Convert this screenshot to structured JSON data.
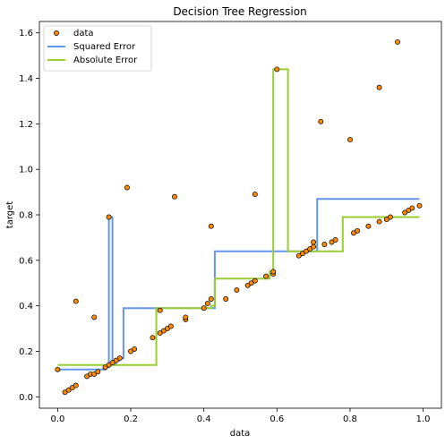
{
  "chart_data": {
    "type": "scatter",
    "title": "Decision Tree Regression",
    "xlabel": "data",
    "ylabel": "target",
    "xlim": [
      -0.05,
      1.05
    ],
    "ylim": [
      -0.05,
      1.65
    ],
    "xticks": [
      "0.0",
      "0.2",
      "0.4",
      "0.6",
      "0.8",
      "1.0"
    ],
    "yticks": [
      "0.0",
      "0.2",
      "0.4",
      "0.6",
      "0.8",
      "1.0",
      "1.2",
      "1.4",
      "1.6"
    ],
    "xtick_values": [
      0,
      0.2,
      0.4,
      0.6,
      0.8,
      1.0
    ],
    "ytick_values": [
      0,
      0.2,
      0.4,
      0.6,
      0.8,
      1.0,
      1.2,
      1.4,
      1.6
    ],
    "legend": {
      "placement": "upper-left",
      "entries": [
        "data",
        "Squared Error",
        "Absolute Error"
      ]
    },
    "colors": {
      "data_fill": "#ff8c00",
      "data_edge": "#000000",
      "squared": "#6495ed",
      "absolute": "#9acd32"
    },
    "series": [
      {
        "name": "data",
        "type": "scatter",
        "points": [
          [
            0.0,
            0.12
          ],
          [
            0.02,
            0.02
          ],
          [
            0.03,
            0.03
          ],
          [
            0.04,
            0.04
          ],
          [
            0.05,
            0.05
          ],
          [
            0.05,
            0.42
          ],
          [
            0.08,
            0.09
          ],
          [
            0.09,
            0.1
          ],
          [
            0.1,
            0.1
          ],
          [
            0.1,
            0.35
          ],
          [
            0.11,
            0.11
          ],
          [
            0.13,
            0.13
          ],
          [
            0.14,
            0.79
          ],
          [
            0.14,
            0.14
          ],
          [
            0.15,
            0.15
          ],
          [
            0.16,
            0.16
          ],
          [
            0.17,
            0.17
          ],
          [
            0.19,
            0.92
          ],
          [
            0.2,
            0.2
          ],
          [
            0.21,
            0.21
          ],
          [
            0.26,
            0.26
          ],
          [
            0.28,
            0.38
          ],
          [
            0.28,
            0.28
          ],
          [
            0.29,
            0.29
          ],
          [
            0.3,
            0.3
          ],
          [
            0.31,
            0.31
          ],
          [
            0.32,
            0.88
          ],
          [
            0.35,
            0.34
          ],
          [
            0.35,
            0.35
          ],
          [
            0.4,
            0.39
          ],
          [
            0.41,
            0.41
          ],
          [
            0.42,
            0.43
          ],
          [
            0.42,
            0.75
          ],
          [
            0.46,
            0.43
          ],
          [
            0.49,
            0.47
          ],
          [
            0.52,
            0.49
          ],
          [
            0.53,
            0.5
          ],
          [
            0.54,
            0.51
          ],
          [
            0.54,
            0.89
          ],
          [
            0.57,
            0.53
          ],
          [
            0.59,
            0.54
          ],
          [
            0.59,
            0.55
          ],
          [
            0.6,
            1.44
          ],
          [
            0.66,
            0.62
          ],
          [
            0.67,
            0.63
          ],
          [
            0.68,
            0.64
          ],
          [
            0.69,
            0.65
          ],
          [
            0.7,
            0.66
          ],
          [
            0.7,
            0.68
          ],
          [
            0.72,
            1.21
          ],
          [
            0.73,
            0.67
          ],
          [
            0.75,
            0.68
          ],
          [
            0.76,
            0.69
          ],
          [
            0.8,
            1.13
          ],
          [
            0.81,
            0.72
          ],
          [
            0.82,
            0.73
          ],
          [
            0.85,
            0.75
          ],
          [
            0.88,
            0.77
          ],
          [
            0.88,
            1.36
          ],
          [
            0.9,
            0.78
          ],
          [
            0.91,
            0.79
          ],
          [
            0.93,
            1.56
          ],
          [
            0.95,
            0.81
          ],
          [
            0.96,
            0.82
          ],
          [
            0.97,
            0.83
          ],
          [
            0.99,
            0.84
          ]
        ]
      },
      {
        "name": "Squared Error",
        "type": "line",
        "points": [
          [
            0.0,
            0.12
          ],
          [
            0.13,
            0.12
          ],
          [
            0.13,
            0.13
          ],
          [
            0.14,
            0.13
          ],
          [
            0.14,
            0.79
          ],
          [
            0.15,
            0.79
          ],
          [
            0.15,
            0.14
          ],
          [
            0.16,
            0.14
          ],
          [
            0.16,
            0.16
          ],
          [
            0.17,
            0.16
          ],
          [
            0.17,
            0.17
          ],
          [
            0.18,
            0.17
          ],
          [
            0.18,
            0.39
          ],
          [
            0.43,
            0.39
          ],
          [
            0.43,
            0.64
          ],
          [
            0.71,
            0.64
          ],
          [
            0.71,
            0.87
          ],
          [
            0.99,
            0.87
          ]
        ]
      },
      {
        "name": "Absolute Error",
        "type": "line",
        "points": [
          [
            0.0,
            0.14
          ],
          [
            0.27,
            0.14
          ],
          [
            0.27,
            0.39
          ],
          [
            0.42,
            0.39
          ],
          [
            0.42,
            0.4
          ],
          [
            0.43,
            0.4
          ],
          [
            0.43,
            0.52
          ],
          [
            0.58,
            0.52
          ],
          [
            0.58,
            0.55
          ],
          [
            0.59,
            0.55
          ],
          [
            0.59,
            1.44
          ],
          [
            0.63,
            1.44
          ],
          [
            0.63,
            0.64
          ],
          [
            0.78,
            0.64
          ],
          [
            0.78,
            0.79
          ],
          [
            0.99,
            0.79
          ]
        ]
      }
    ]
  }
}
